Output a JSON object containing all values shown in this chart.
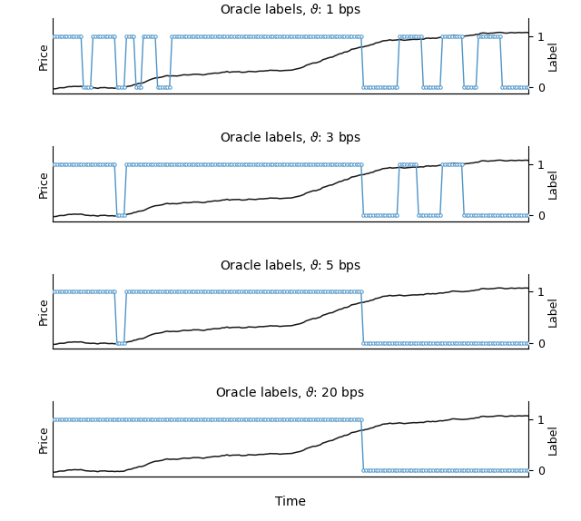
{
  "titles": [
    "Oracle labels, $\\vartheta$: 1 bps",
    "Oracle labels, $\\vartheta$: 3 bps",
    "Oracle labels, $\\vartheta$: 5 bps",
    "Oracle labels, $\\vartheta$: 20 bps"
  ],
  "xlabel": "Time",
  "ylabel_left": "Price",
  "ylabel_right": "Label",
  "price_color": "#1a1a1a",
  "label_color": "#4d94c8",
  "bg_color": "#ffffff",
  "n_points": 200,
  "price_seed": 42,
  "label_segments": [
    [
      [
        0,
        1
      ],
      [
        13,
        0
      ],
      [
        17,
        1
      ],
      [
        27,
        0
      ],
      [
        31,
        1
      ],
      [
        35,
        0
      ],
      [
        38,
        1
      ],
      [
        44,
        0
      ],
      [
        50,
        1
      ],
      [
        130,
        0
      ],
      [
        145,
        1
      ],
      [
        155,
        0
      ],
      [
        163,
        1
      ],
      [
        172,
        0
      ],
      [
        178,
        1
      ],
      [
        188,
        0
      ],
      [
        200,
        0
      ]
    ],
    [
      [
        0,
        1
      ],
      [
        27,
        0
      ],
      [
        31,
        1
      ],
      [
        130,
        0
      ],
      [
        145,
        1
      ],
      [
        153,
        0
      ],
      [
        163,
        1
      ],
      [
        172,
        0
      ],
      [
        200,
        0
      ]
    ],
    [
      [
        0,
        1
      ],
      [
        27,
        0
      ],
      [
        31,
        1
      ],
      [
        130,
        0
      ],
      [
        200,
        0
      ]
    ],
    [
      [
        0,
        1
      ],
      [
        130,
        0
      ],
      [
        200,
        0
      ]
    ]
  ],
  "figsize": [
    6.4,
    5.74
  ],
  "dpi": 100,
  "title_fontsize": 10,
  "label_fontsize": 9,
  "tick_fontsize": 9,
  "marker_size": 2.5,
  "price_lw": 1.1,
  "label_lw": 1.0
}
